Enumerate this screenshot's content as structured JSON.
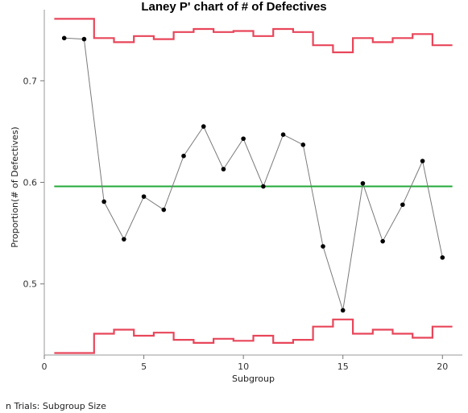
{
  "chart_data": {
    "type": "line",
    "title": "Laney P' chart of # of Defectives",
    "xlabel": "Subgroup",
    "ylabel": "Proportion(# of Defectives)",
    "xlim": [
      0,
      21
    ],
    "ylim": [
      0.43,
      0.77
    ],
    "xticks": [
      0,
      5,
      10,
      15,
      20
    ],
    "xtick_labels": [
      "0",
      "5",
      "10",
      "15",
      "20"
    ],
    "yticks": [
      0.5,
      0.6,
      0.7
    ],
    "ytick_labels": [
      "0.5",
      "0.6",
      "0.7"
    ],
    "grid": false,
    "x": [
      1,
      2,
      3,
      4,
      5,
      6,
      7,
      8,
      9,
      10,
      11,
      12,
      13,
      14,
      15,
      16,
      17,
      18,
      19,
      20
    ],
    "series": [
      {
        "role": "proportion",
        "color": "#7a7a7a",
        "point_color": "#000000",
        "values": [
          0.742,
          0.741,
          0.581,
          0.544,
          0.586,
          0.573,
          0.626,
          0.655,
          0.613,
          0.643,
          0.596,
          0.647,
          0.637,
          0.537,
          0.474,
          0.599,
          0.542,
          0.578,
          0.621,
          0.526
        ]
      },
      {
        "role": "center-line",
        "color": "#22a837",
        "value": 0.596
      },
      {
        "role": "upper-control-limit",
        "color": "#e8465a",
        "values": [
          0.761,
          0.761,
          0.742,
          0.738,
          0.744,
          0.741,
          0.748,
          0.751,
          0.748,
          0.749,
          0.744,
          0.751,
          0.748,
          0.735,
          0.728,
          0.742,
          0.738,
          0.742,
          0.746,
          0.735
        ]
      },
      {
        "role": "lower-control-limit",
        "color": "#e8465a",
        "values": [
          0.432,
          0.432,
          0.451,
          0.455,
          0.449,
          0.452,
          0.445,
          0.442,
          0.446,
          0.444,
          0.449,
          0.442,
          0.445,
          0.458,
          0.465,
          0.451,
          0.455,
          0.451,
          0.447,
          0.458
        ]
      }
    ]
  },
  "footnote": "n Trials: Subgroup Size"
}
